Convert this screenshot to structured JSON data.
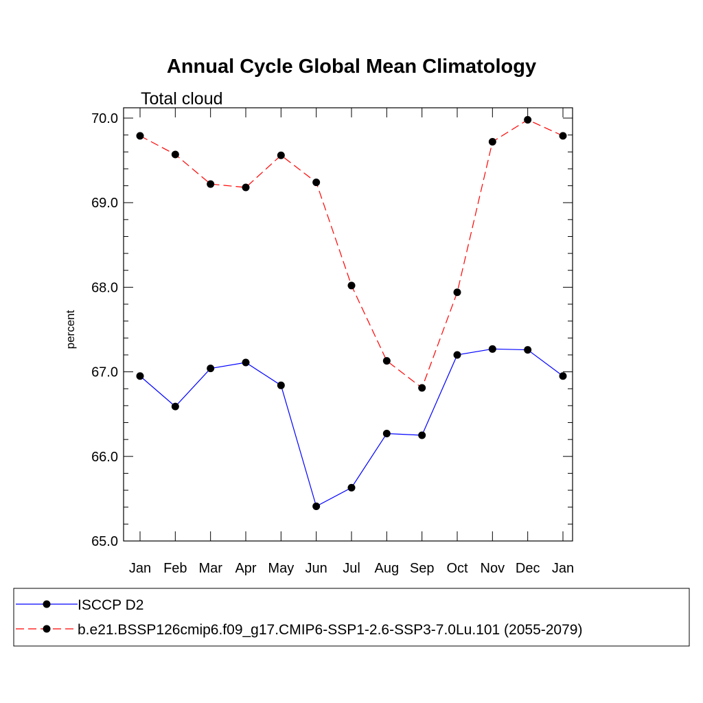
{
  "chart_data": {
    "type": "line",
    "title": "Annual Cycle Global Mean Climatology",
    "subtitle": "Total cloud",
    "xlabel": "",
    "ylabel": "percent",
    "categories": [
      "Jan",
      "Feb",
      "Mar",
      "Apr",
      "May",
      "Jun",
      "Jul",
      "Aug",
      "Sep",
      "Oct",
      "Nov",
      "Dec",
      "Jan"
    ],
    "ylim": [
      65.0,
      70.0
    ],
    "yticks": [
      65.0,
      66.0,
      67.0,
      68.0,
      69.0,
      70.0
    ],
    "ytick_labels": [
      "65.0",
      "66.0",
      "67.0",
      "68.0",
      "69.0",
      "70.0"
    ],
    "grid": false,
    "legend_position": "bottom",
    "series": [
      {
        "name": "ISCCP D2",
        "color": "#0000ff",
        "dash": "solid",
        "marker": "filled-circle",
        "values": [
          66.95,
          66.59,
          67.04,
          67.11,
          66.84,
          65.41,
          65.63,
          66.27,
          66.25,
          67.2,
          67.27,
          67.26,
          66.95
        ]
      },
      {
        "name": "b.e21.BSSP126cmip6.f09_g17.CMIP6-SSP1-2.6-SSP3-7.0Lu.101 (2055-2079)",
        "color": "#ff0000",
        "dash": "dashed",
        "marker": "filled-circle",
        "values": [
          69.79,
          69.57,
          69.22,
          69.18,
          69.56,
          69.24,
          68.02,
          67.13,
          66.81,
          67.94,
          69.72,
          69.98,
          69.79
        ]
      }
    ]
  }
}
